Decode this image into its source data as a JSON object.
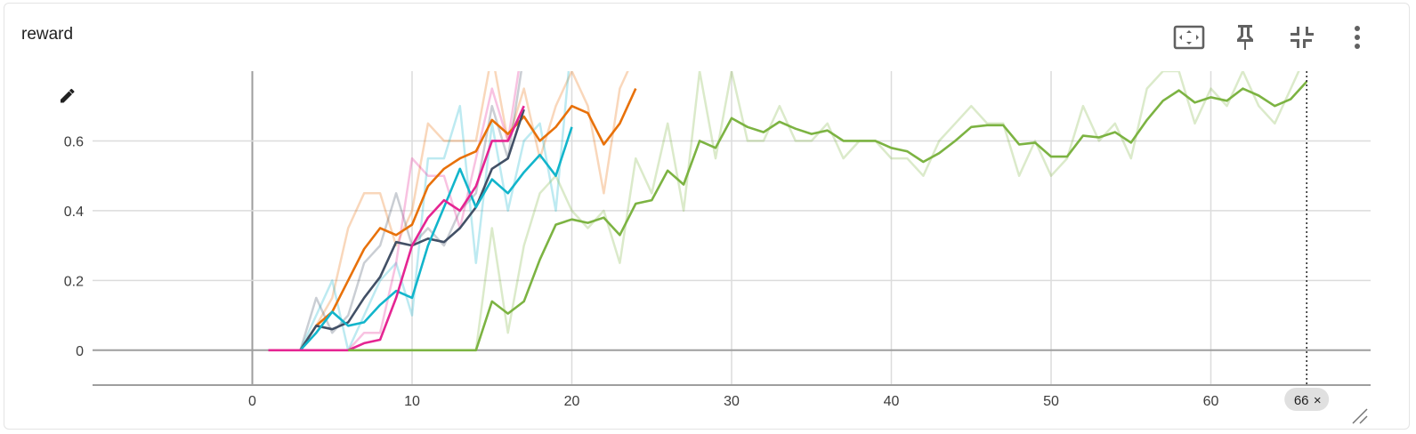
{
  "card": {
    "title": "reward"
  },
  "toolbar": {
    "buttons": [
      {
        "name": "fit-domain-button",
        "icon": "fit-to-data-icon"
      },
      {
        "name": "pin-button",
        "icon": "pin-icon"
      },
      {
        "name": "collapse-button",
        "icon": "collapse-icon"
      },
      {
        "name": "more-menu-button",
        "icon": "more-vert-icon"
      }
    ]
  },
  "edit_icon": "pencil-icon",
  "cursor": {
    "step": 66,
    "label": "66",
    "close_glyph": "×"
  },
  "chart_data": {
    "type": "line",
    "title": "reward",
    "xlabel": "",
    "ylabel": "",
    "xlim": [
      -10,
      70
    ],
    "ylim": [
      -0.1,
      0.8
    ],
    "x_ticks": [
      0,
      10,
      20,
      30,
      40,
      50,
      60
    ],
    "x_tick_labels": [
      "0",
      "10",
      "20",
      "30",
      "40",
      "50",
      "60"
    ],
    "y_ticks": [
      0,
      0.2,
      0.4,
      0.6
    ],
    "y_tick_labels": [
      "0",
      "0.2",
      "0.4",
      "0.6"
    ],
    "grid": true,
    "legend": "none",
    "series": [
      {
        "color": "#e8710a",
        "x": [
          3,
          4,
          5,
          6,
          7,
          8,
          9,
          10,
          11,
          12,
          13,
          14,
          15,
          16,
          17,
          18,
          19,
          20,
          21,
          22,
          23,
          24
        ],
        "smoothed": [
          0,
          0.07,
          0.11,
          0.2,
          0.29,
          0.35,
          0.33,
          0.36,
          0.47,
          0.52,
          0.55,
          0.57,
          0.66,
          0.62,
          0.67,
          0.6,
          0.64,
          0.7,
          0.68,
          0.59,
          0.65,
          0.75
        ],
        "raw": [
          0,
          0.07,
          0.15,
          0.35,
          0.45,
          0.45,
          0.3,
          0.4,
          0.65,
          0.6,
          0.6,
          0.6,
          0.85,
          0.6,
          0.75,
          0.55,
          0.7,
          0.8,
          0.7,
          0.45,
          0.75,
          0.85
        ]
      },
      {
        "color": "#425066",
        "x": [
          3,
          4,
          5,
          6,
          7,
          8,
          9,
          10,
          11,
          12,
          13,
          14,
          15,
          16,
          17
        ],
        "smoothed": [
          0,
          0.07,
          0.06,
          0.08,
          0.15,
          0.21,
          0.31,
          0.3,
          0.32,
          0.31,
          0.35,
          0.41,
          0.52,
          0.55,
          0.69
        ],
        "raw": [
          0,
          0.15,
          0.05,
          0.1,
          0.25,
          0.3,
          0.45,
          0.3,
          0.35,
          0.3,
          0.4,
          0.45,
          0.7,
          0.55,
          0.85
        ]
      },
      {
        "color": "#12b5cb",
        "x": [
          3,
          4,
          5,
          6,
          7,
          8,
          9,
          10,
          11,
          12,
          13,
          14,
          15,
          16,
          17,
          18,
          19,
          20
        ],
        "smoothed": [
          0,
          0.05,
          0.11,
          0.07,
          0.08,
          0.13,
          0.17,
          0.15,
          0.3,
          0.41,
          0.52,
          0.41,
          0.49,
          0.45,
          0.51,
          0.56,
          0.5,
          0.64
        ],
        "raw": [
          0,
          0.1,
          0.2,
          0.0,
          0.1,
          0.2,
          0.25,
          0.1,
          0.55,
          0.55,
          0.7,
          0.25,
          0.65,
          0.4,
          0.6,
          0.65,
          0.4,
          0.9
        ]
      },
      {
        "color": "#e52592",
        "x": [
          1,
          2,
          3,
          4,
          5,
          6,
          7,
          8,
          9,
          10,
          11,
          12,
          13,
          14,
          15,
          16,
          17
        ],
        "smoothed": [
          0,
          0,
          0,
          0,
          0,
          0,
          0.02,
          0.03,
          0.15,
          0.3,
          0.38,
          0.43,
          0.4,
          0.47,
          0.6,
          0.6,
          0.7
        ],
        "raw": [
          0,
          0,
          0,
          0,
          0,
          0,
          0.05,
          0.05,
          0.25,
          0.55,
          0.5,
          0.5,
          0.35,
          0.55,
          0.75,
          0.6,
          0.9
        ]
      },
      {
        "color": "#7cb342",
        "x": [
          6,
          7,
          8,
          9,
          10,
          11,
          12,
          13,
          14,
          15,
          16,
          17,
          18,
          19,
          20,
          21,
          22,
          23,
          24,
          25,
          26,
          27,
          28,
          29,
          30,
          31,
          32,
          33,
          34,
          35,
          36,
          37,
          38,
          39,
          40,
          41,
          42,
          43,
          44,
          45,
          46,
          47,
          48,
          49,
          50,
          51,
          52,
          53,
          54,
          55,
          56,
          57,
          58,
          59,
          60,
          61,
          62,
          63,
          64,
          65,
          66
        ],
        "smoothed": [
          0,
          0,
          0,
          0,
          0,
          0,
          0,
          0,
          0,
          0.14,
          0.105,
          0.14,
          0.26,
          0.36,
          0.375,
          0.365,
          0.38,
          0.33,
          0.42,
          0.43,
          0.515,
          0.475,
          0.6,
          0.58,
          0.665,
          0.64,
          0.625,
          0.655,
          0.635,
          0.62,
          0.63,
          0.6,
          0.6,
          0.6,
          0.58,
          0.57,
          0.54,
          0.565,
          0.6,
          0.64,
          0.645,
          0.645,
          0.59,
          0.595,
          0.555,
          0.555,
          0.615,
          0.61,
          0.625,
          0.595,
          0.66,
          0.715,
          0.745,
          0.71,
          0.725,
          0.715,
          0.75,
          0.73,
          0.7,
          0.72,
          0.77
        ],
        "raw": [
          0,
          0,
          0,
          0,
          0,
          0,
          0,
          0,
          0,
          0.35,
          0.05,
          0.3,
          0.45,
          0.5,
          0.4,
          0.35,
          0.4,
          0.25,
          0.55,
          0.45,
          0.65,
          0.4,
          0.8,
          0.55,
          0.8,
          0.6,
          0.6,
          0.7,
          0.6,
          0.6,
          0.65,
          0.55,
          0.6,
          0.6,
          0.55,
          0.55,
          0.5,
          0.6,
          0.65,
          0.7,
          0.65,
          0.65,
          0.5,
          0.6,
          0.5,
          0.55,
          0.7,
          0.6,
          0.65,
          0.55,
          0.75,
          0.8,
          0.8,
          0.65,
          0.75,
          0.7,
          0.8,
          0.7,
          0.65,
          0.75,
          0.85
        ]
      }
    ]
  }
}
